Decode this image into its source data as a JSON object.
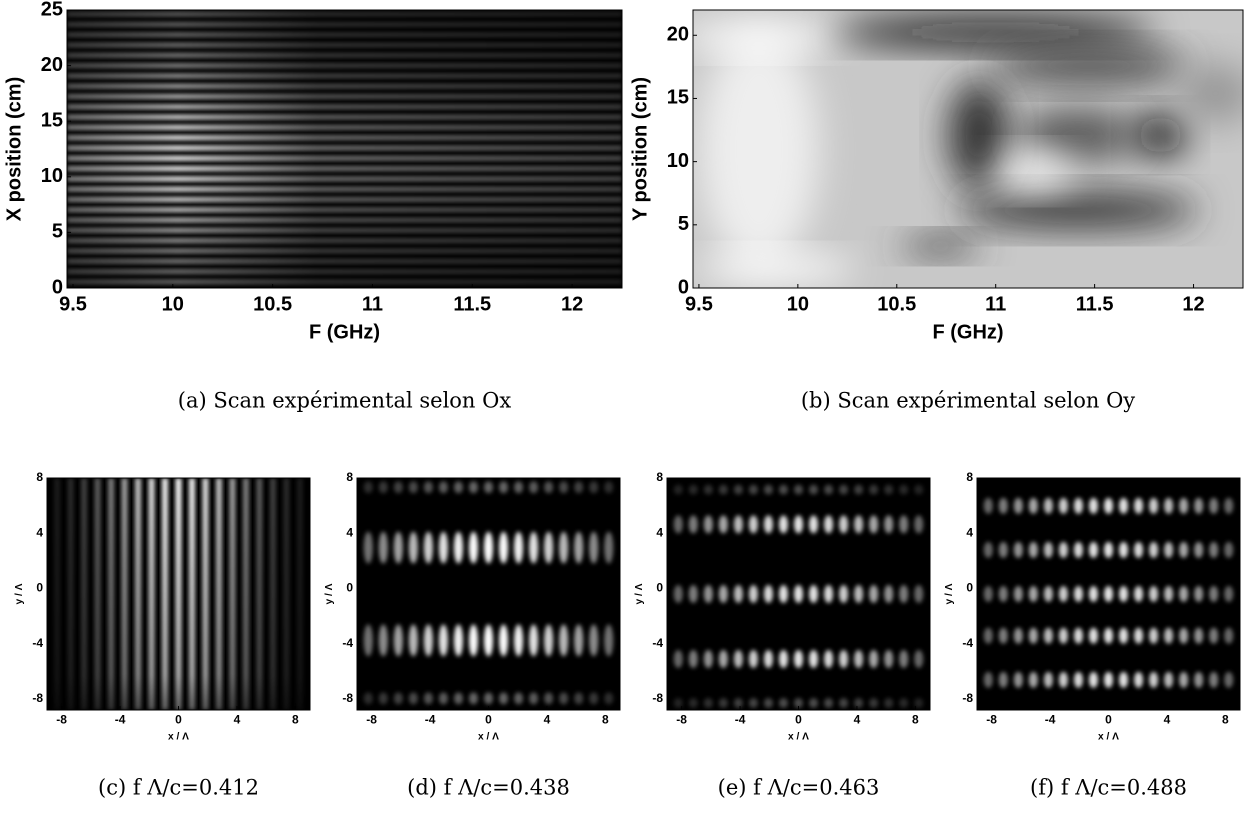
{
  "chart_data": [
    {
      "type": "heatmap",
      "xlabel": "F (GHz)",
      "ylabel": "X position (cm)",
      "xlim": [
        9.47,
        12.25
      ],
      "ylim": [
        0,
        25
      ],
      "xticks": [
        9.5,
        10,
        10.5,
        11,
        11.5,
        12
      ],
      "yticks": [
        0,
        5,
        10,
        15,
        20,
        25
      ],
      "caption": "(a) Scan expérimental selon Ox"
    },
    {
      "type": "heatmap",
      "xlabel": "F (GHz)",
      "ylabel": "Y position (cm)",
      "xlim": [
        9.47,
        12.25
      ],
      "ylim": [
        0,
        22
      ],
      "xticks": [
        9.5,
        10,
        10.5,
        11,
        11.5,
        12
      ],
      "yticks": [
        0,
        5,
        10,
        15,
        20
      ],
      "caption": "(b) Scan expérimental selon Oy"
    },
    {
      "type": "heatmap",
      "xlabel": "x / Λ",
      "ylabel": "y / Λ",
      "xlim": [
        -9,
        9
      ],
      "ylim": [
        -8.8,
        8
      ],
      "xticks": [
        -8,
        -4,
        0,
        4,
        8
      ],
      "yticks": [
        -8,
        -4,
        0,
        4,
        8
      ],
      "caption": "(c) f Λ/c=0.412"
    },
    {
      "type": "heatmap",
      "xlabel": "x / Λ",
      "ylabel": "y / Λ",
      "xlim": [
        -9,
        9
      ],
      "ylim": [
        -8.8,
        8
      ],
      "xticks": [
        -8,
        -4,
        0,
        4,
        8
      ],
      "yticks": [
        -8,
        -4,
        0,
        4,
        8
      ],
      "caption": "(d) f Λ/c=0.438"
    },
    {
      "type": "heatmap",
      "xlabel": "x / Λ",
      "ylabel": "y / Λ",
      "xlim": [
        -9,
        9
      ],
      "ylim": [
        -8.8,
        8
      ],
      "xticks": [
        -8,
        -4,
        0,
        4,
        8
      ],
      "yticks": [
        -8,
        -4,
        0,
        4,
        8
      ],
      "caption": "(e) f Λ/c=0.463"
    },
    {
      "type": "heatmap",
      "xlabel": "x / Λ",
      "ylabel": "y / Λ",
      "xlim": [
        -9,
        9
      ],
      "ylim": [
        -8.8,
        8
      ],
      "xticks": [
        -8,
        -4,
        0,
        4,
        8
      ],
      "yticks": [
        -8,
        -4,
        0,
        4,
        8
      ],
      "caption": "(f) f Λ/c=0.488"
    }
  ]
}
